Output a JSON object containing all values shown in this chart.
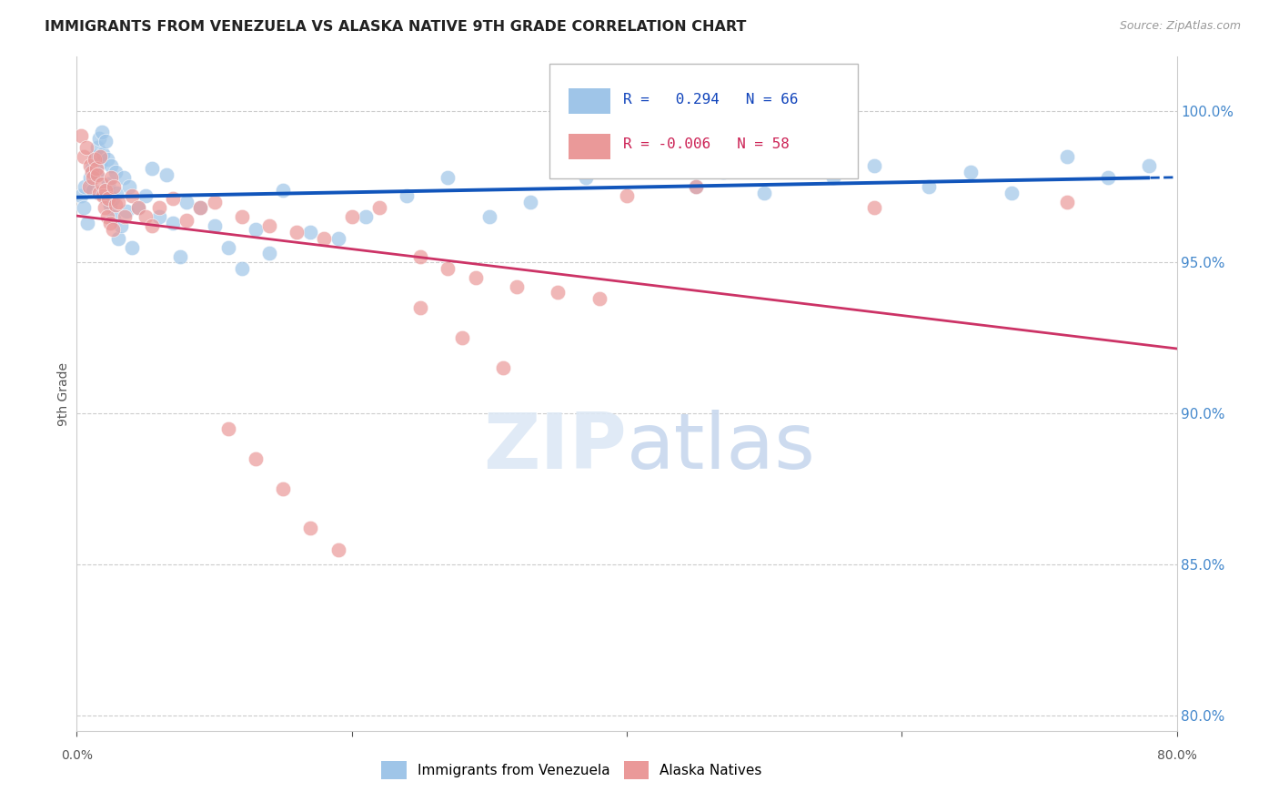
{
  "title": "IMMIGRANTS FROM VENEZUELA VS ALASKA NATIVE 9TH GRADE CORRELATION CHART",
  "source": "Source: ZipAtlas.com",
  "ylabel": "9th Grade",
  "y_ticks": [
    80.0,
    85.0,
    90.0,
    95.0,
    100.0
  ],
  "x_ticks": [
    0,
    20,
    40,
    60,
    80
  ],
  "x_min": 0.0,
  "x_max": 80.0,
  "y_min": 79.5,
  "y_max": 101.8,
  "legend_blue_label": "Immigrants from Venezuela",
  "legend_pink_label": "Alaska Natives",
  "R_blue": 0.294,
  "N_blue": 66,
  "R_pink": -0.006,
  "N_pink": 58,
  "blue_color": "#9fc5e8",
  "pink_color": "#ea9999",
  "blue_line_color": "#1155bb",
  "pink_line_color": "#cc3366",
  "blue_x": [
    0.3,
    0.5,
    0.6,
    0.8,
    1.0,
    1.1,
    1.2,
    1.3,
    1.4,
    1.5,
    1.6,
    1.7,
    1.8,
    1.9,
    2.0,
    2.1,
    2.2,
    2.3,
    2.4,
    2.5,
    2.6,
    2.7,
    2.8,
    2.9,
    3.0,
    3.2,
    3.4,
    3.6,
    3.8,
    4.0,
    4.5,
    5.0,
    5.5,
    6.0,
    6.5,
    7.0,
    7.5,
    8.0,
    9.0,
    10.0,
    11.0,
    12.0,
    13.0,
    14.0,
    15.0,
    17.0,
    19.0,
    21.0,
    24.0,
    27.0,
    30.0,
    33.0,
    37.0,
    41.0,
    45.0,
    47.0,
    50.0,
    52.0,
    55.0,
    58.0,
    62.0,
    65.0,
    68.0,
    72.0,
    75.0,
    78.0
  ],
  "blue_y": [
    97.2,
    96.8,
    97.5,
    96.3,
    97.8,
    98.1,
    97.4,
    98.5,
    97.9,
    98.8,
    99.1,
    98.3,
    99.3,
    98.6,
    97.2,
    99.0,
    98.4,
    97.6,
    96.9,
    98.2,
    97.1,
    96.5,
    98.0,
    97.3,
    95.8,
    96.2,
    97.8,
    96.7,
    97.5,
    95.5,
    96.8,
    97.2,
    98.1,
    96.5,
    97.9,
    96.3,
    95.2,
    97.0,
    96.8,
    96.2,
    95.5,
    94.8,
    96.1,
    95.3,
    97.4,
    96.0,
    95.8,
    96.5,
    97.2,
    97.8,
    96.5,
    97.0,
    97.8,
    98.2,
    97.5,
    98.0,
    97.3,
    98.5,
    97.8,
    98.2,
    97.5,
    98.0,
    97.3,
    98.5,
    97.8,
    98.2
  ],
  "pink_x": [
    0.3,
    0.5,
    0.7,
    0.9,
    1.0,
    1.1,
    1.2,
    1.3,
    1.4,
    1.5,
    1.6,
    1.7,
    1.8,
    1.9,
    2.0,
    2.1,
    2.2,
    2.3,
    2.4,
    2.5,
    2.6,
    2.7,
    2.8,
    3.0,
    3.5,
    4.0,
    4.5,
    5.0,
    5.5,
    6.0,
    7.0,
    8.0,
    9.0,
    10.0,
    12.0,
    14.0,
    16.0,
    18.0,
    20.0,
    22.0,
    25.0,
    27.0,
    29.0,
    32.0,
    35.0,
    38.0,
    11.0,
    13.0,
    15.0,
    17.0,
    19.0,
    25.0,
    28.0,
    31.0,
    40.0,
    45.0,
    72.0,
    58.0
  ],
  "pink_y": [
    99.2,
    98.5,
    98.8,
    97.5,
    98.2,
    98.0,
    97.8,
    98.4,
    98.1,
    97.9,
    97.3,
    98.5,
    97.6,
    97.2,
    96.8,
    97.4,
    96.5,
    97.1,
    96.3,
    97.8,
    96.1,
    97.5,
    96.9,
    97.0,
    96.5,
    97.2,
    96.8,
    96.5,
    96.2,
    96.8,
    97.1,
    96.4,
    96.8,
    97.0,
    96.5,
    96.2,
    96.0,
    95.8,
    96.5,
    96.8,
    95.2,
    94.8,
    94.5,
    94.2,
    94.0,
    93.8,
    89.5,
    88.5,
    87.5,
    86.2,
    85.5,
    93.5,
    92.5,
    91.5,
    97.2,
    97.5,
    97.0,
    96.8
  ]
}
